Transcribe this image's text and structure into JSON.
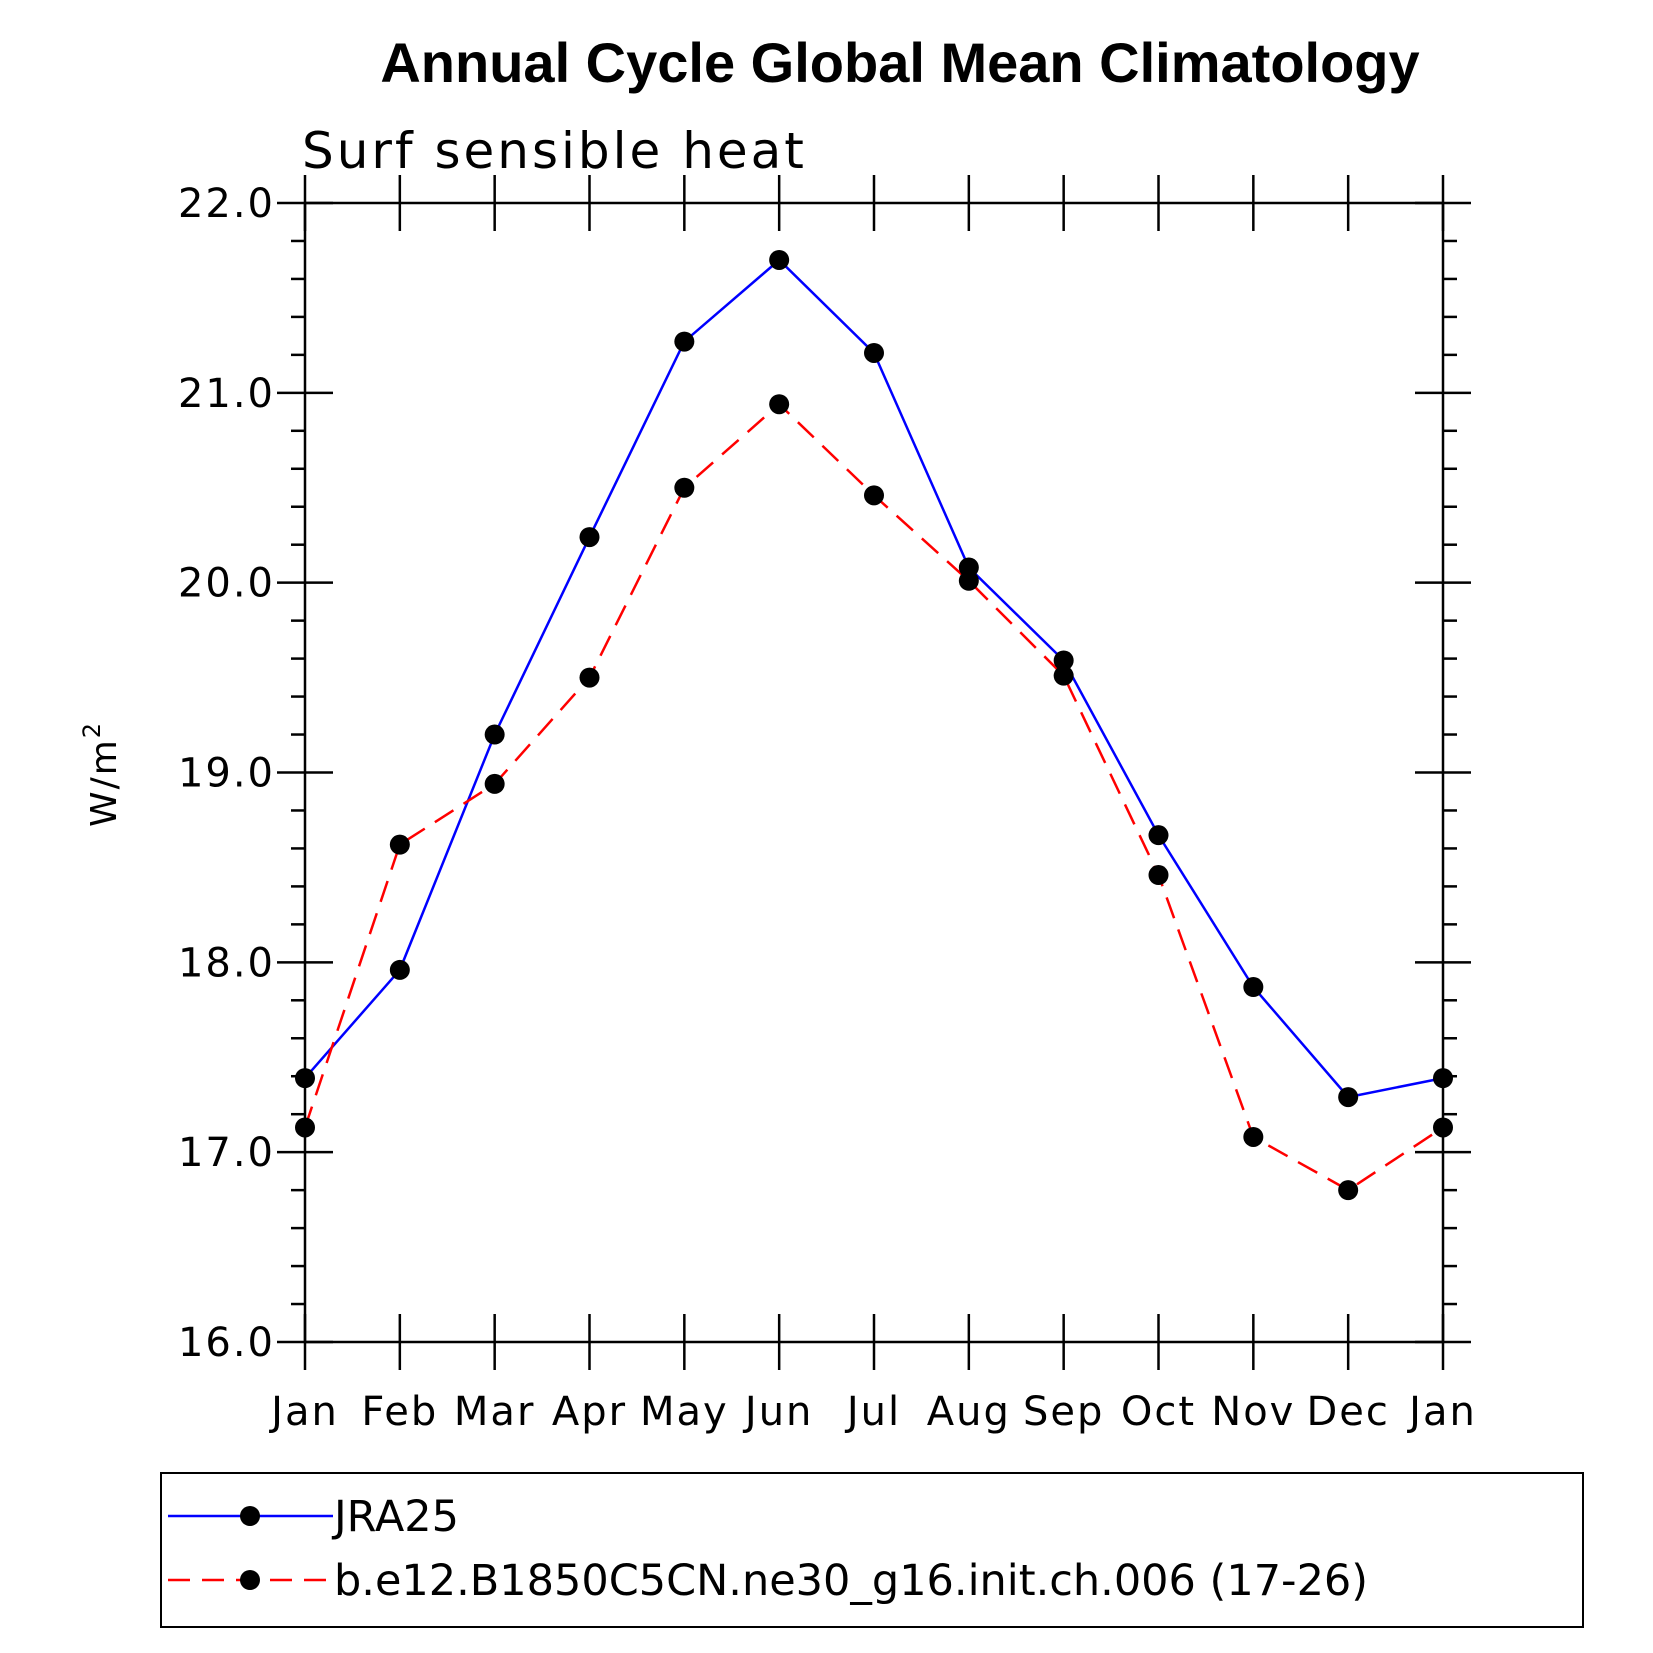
{
  "chart_data": {
    "type": "line",
    "title": "Annual Cycle Global Mean Climatology",
    "subtitle": "Surf sensible heat",
    "ylabel": "W/m",
    "ylabel_sup": "2",
    "xlabel": "",
    "ylim": [
      16.0,
      22.0
    ],
    "yticks": [
      "16.0",
      "17.0",
      "18.0",
      "19.0",
      "20.0",
      "21.0",
      "22.0"
    ],
    "categories": [
      "Jan",
      "Feb",
      "Mar",
      "Apr",
      "May",
      "Jun",
      "Jul",
      "Aug",
      "Sep",
      "Oct",
      "Nov",
      "Dec",
      "Jan"
    ],
    "grid": false,
    "legend_position": "bottom",
    "series": [
      {
        "name": "JRA25",
        "color": "#0000ff",
        "dash": "solid",
        "values": [
          17.39,
          17.96,
          19.2,
          20.24,
          21.27,
          21.7,
          21.21,
          20.08,
          19.59,
          18.67,
          17.87,
          17.29,
          17.39
        ]
      },
      {
        "name": "b.e12.B1850C5CN.ne30_g16.init.ch.006 (17-26)",
        "color": "#ff0000",
        "dash": "dashed",
        "values": [
          17.13,
          18.62,
          18.94,
          19.5,
          20.5,
          20.94,
          20.46,
          20.01,
          19.51,
          18.46,
          17.08,
          16.8,
          17.13
        ]
      }
    ],
    "marker_color": "#000000"
  }
}
